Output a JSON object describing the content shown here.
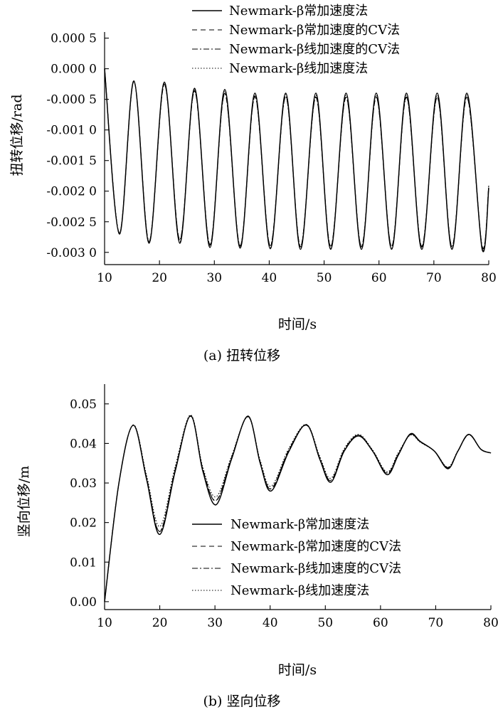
{
  "chart_data": [
    {
      "type": "line",
      "caption": "(a) 扭转位移",
      "xlabel": "时间/s",
      "ylabel": "扭转位移/rad",
      "xlim": [
        10,
        80
      ],
      "ylim": [
        -0.0032,
        0.0006
      ],
      "xticks": [
        10,
        20,
        30,
        40,
        50,
        60,
        70,
        80
      ],
      "xtick_labels": [
        "10",
        "20",
        "30",
        "40",
        "50",
        "60",
        "70",
        "80"
      ],
      "yticks": [
        0.0005,
        0.0,
        -0.0005,
        -0.001,
        -0.0015,
        -0.002,
        -0.0025,
        -0.003
      ],
      "ytick_labels": [
        "0.000 5",
        "0.000 0",
        "-0.000 5",
        "-0.001 0",
        "-0.001 5",
        "-0.002 0",
        "-0.002 5",
        "-0.003 0"
      ],
      "legend": "top-center",
      "grid": false,
      "x": [
        10.0,
        12.7,
        15.35,
        18.1,
        20.9,
        23.7,
        26.4,
        29.2,
        31.9,
        34.7,
        37.4,
        40.2,
        43.0,
        45.7,
        48.5,
        51.2,
        54.0,
        56.8,
        59.5,
        62.3,
        65.0,
        67.8,
        70.6,
        73.3,
        76.0,
        78.8,
        80.0
      ],
      "series": [
        {
          "name": "Newmark-β常加速度法",
          "dash": "",
          "values": [
            0.0,
            -0.0027,
            -0.0002,
            -0.00285,
            -0.00022,
            -0.00285,
            -0.00032,
            -0.00292,
            -0.00034,
            -0.00293,
            -0.0004,
            -0.00294,
            -0.0004,
            -0.00295,
            -0.0004,
            -0.00295,
            -0.0004,
            -0.00295,
            -0.0004,
            -0.00295,
            -0.0004,
            -0.00295,
            -0.0004,
            -0.00295,
            -0.0004,
            -0.00295,
            -0.00195
          ]
        },
        {
          "name": "Newmark-β常加速度的CV法",
          "dash": "7 5",
          "values": [
            0.0,
            -0.0027,
            -0.0002,
            -0.00283,
            -0.00025,
            -0.0028,
            -0.00036,
            -0.00288,
            -0.0004,
            -0.0029,
            -0.00045,
            -0.0029,
            -0.00045,
            -0.00291,
            -0.00046,
            -0.00291,
            -0.00046,
            -0.00291,
            -0.00046,
            -0.00291,
            -0.00046,
            -0.00291,
            -0.00046,
            -0.00291,
            -0.00046,
            -0.00291,
            -0.00192
          ]
        },
        {
          "name": "Newmark-β线加速度的CV法",
          "dash": "8 3 2 3",
          "values": [
            0.0,
            -0.00268,
            -0.00021,
            -0.00282,
            -0.00026,
            -0.00279,
            -0.00037,
            -0.00287,
            -0.00041,
            -0.00289,
            -0.00046,
            -0.00289,
            -0.00046,
            -0.0029,
            -0.00047,
            -0.0029,
            -0.00047,
            -0.0029,
            -0.00047,
            -0.0029,
            -0.00047,
            -0.0029,
            -0.00047,
            -0.0029,
            -0.00047,
            -0.0029,
            -0.00191
          ]
        },
        {
          "name": "Newmark-β线加速度法",
          "dash": "1.5 2.5",
          "values": [
            0.0,
            -0.00269,
            -0.00021,
            -0.00284,
            -0.00023,
            -0.00283,
            -0.00034,
            -0.0029,
            -0.00036,
            -0.00291,
            -0.00042,
            -0.00292,
            -0.00042,
            -0.00293,
            -0.00043,
            -0.00293,
            -0.00043,
            -0.00293,
            -0.00043,
            -0.00293,
            -0.00043,
            -0.00293,
            -0.00043,
            -0.00293,
            -0.00043,
            -0.00293,
            -0.00194
          ]
        }
      ]
    },
    {
      "type": "line",
      "caption": "(b) 竖向位移",
      "xlabel": "时间/s",
      "ylabel": "竖向位移/m",
      "xlim": [
        10,
        80
      ],
      "ylim": [
        -0.002,
        0.055
      ],
      "xticks": [
        10,
        20,
        30,
        40,
        50,
        60,
        70,
        80
      ],
      "xtick_labels": [
        "10",
        "20",
        "30",
        "40",
        "50",
        "60",
        "70",
        "80"
      ],
      "yticks": [
        0.0,
        0.01,
        0.02,
        0.03,
        0.04,
        0.05
      ],
      "ytick_labels": [
        "0.00",
        "0.01",
        "0.02",
        "0.03",
        "0.04",
        "0.05"
      ],
      "legend": "bottom-center",
      "grid": false,
      "x": [
        10.0,
        12.6,
        15.2,
        17.6,
        20.0,
        22.8,
        25.6,
        27.8,
        30.2,
        33.0,
        36.0,
        38.2,
        40.2,
        43.4,
        46.6,
        49.0,
        51.0,
        53.4,
        56.0,
        58.6,
        61.2,
        63.2,
        65.4,
        67.2,
        69.8,
        72.2,
        74.0,
        76.0,
        78.2,
        80.0
      ],
      "series": [
        {
          "name": "Newmark-β常加速度法",
          "dash": "",
          "values": [
            0.0,
            0.03,
            0.0446,
            0.031,
            0.017,
            0.033,
            0.047,
            0.033,
            0.0245,
            0.036,
            0.0469,
            0.035,
            0.028,
            0.038,
            0.0447,
            0.036,
            0.0302,
            0.038,
            0.0419,
            0.038,
            0.0321,
            0.037,
            0.0424,
            0.0405,
            0.038,
            0.0336,
            0.038,
            0.0423,
            0.0385,
            0.0376
          ]
        },
        {
          "name": "Newmark-β常加速度的CV法",
          "dash": "7 5",
          "values": [
            0.0,
            0.03,
            0.0446,
            0.0313,
            0.0177,
            0.0334,
            0.0469,
            0.0334,
            0.0255,
            0.0363,
            0.0468,
            0.0352,
            0.0285,
            0.0383,
            0.0446,
            0.0362,
            0.0306,
            0.0382,
            0.0421,
            0.0381,
            0.0324,
            0.0372,
            0.0422,
            0.0404,
            0.038,
            0.0338,
            0.038,
            0.0422,
            0.0385,
            0.0376
          ]
        },
        {
          "name": "Newmark-β线加速度的CV法",
          "dash": "8 3 2 3",
          "values": [
            0.0,
            0.03,
            0.0446,
            0.0314,
            0.0178,
            0.0335,
            0.0469,
            0.0335,
            0.0256,
            0.0364,
            0.0468,
            0.0353,
            0.0286,
            0.0384,
            0.0446,
            0.0363,
            0.0307,
            0.0383,
            0.0421,
            0.0381,
            0.0325,
            0.0373,
            0.0422,
            0.0404,
            0.038,
            0.0339,
            0.038,
            0.0422,
            0.0385,
            0.0376
          ]
        },
        {
          "name": "Newmark-β线加速度法",
          "dash": "1.5 2.5",
          "values": [
            0.0,
            0.03,
            0.0447,
            0.032,
            0.019,
            0.0342,
            0.0472,
            0.034,
            0.0265,
            0.0368,
            0.0467,
            0.0357,
            0.0292,
            0.0388,
            0.0448,
            0.0367,
            0.0312,
            0.0386,
            0.0423,
            0.0383,
            0.0328,
            0.0376,
            0.0421,
            0.0403,
            0.038,
            0.034,
            0.0381,
            0.0422,
            0.0385,
            0.0376
          ]
        }
      ]
    }
  ]
}
